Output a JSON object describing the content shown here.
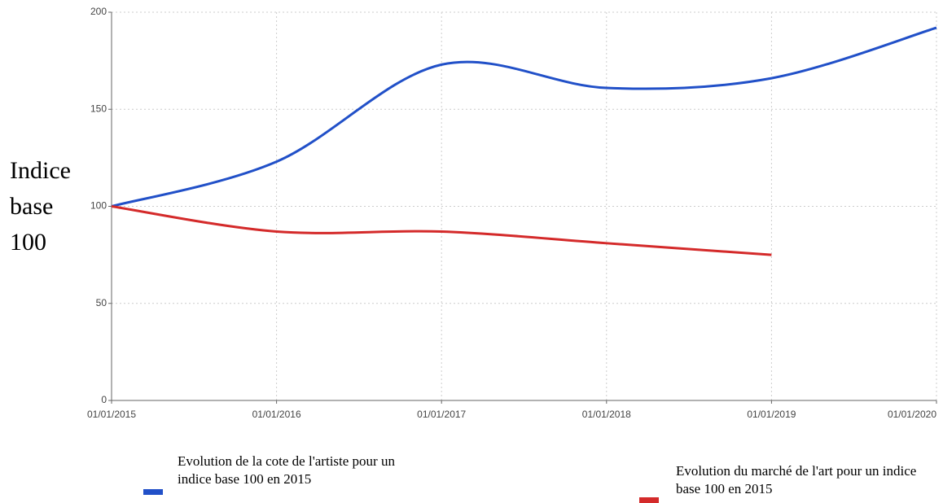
{
  "chart_data": {
    "type": "line",
    "y_label": "Indice base 100",
    "categories": [
      "01/01/2015",
      "01/01/2016",
      "01/01/2017",
      "01/01/2018",
      "01/01/2019",
      "01/01/2020"
    ],
    "series": [
      {
        "name": "Evolution de la cote de l'artiste pour un indice base 100 en 2015",
        "color": "#2150c8",
        "values": [
          100,
          123,
          173,
          161,
          166,
          192
        ]
      },
      {
        "name": "Evolution du marché de l'art pour un indice base 100 en 2015",
        "color": "#d42a2a",
        "values": [
          100,
          87,
          87,
          81,
          75,
          null
        ]
      }
    ],
    "ylim": [
      0,
      200
    ],
    "yticks": [
      0,
      50,
      100,
      150,
      200
    ],
    "grid": true,
    "legend": "bottom"
  }
}
